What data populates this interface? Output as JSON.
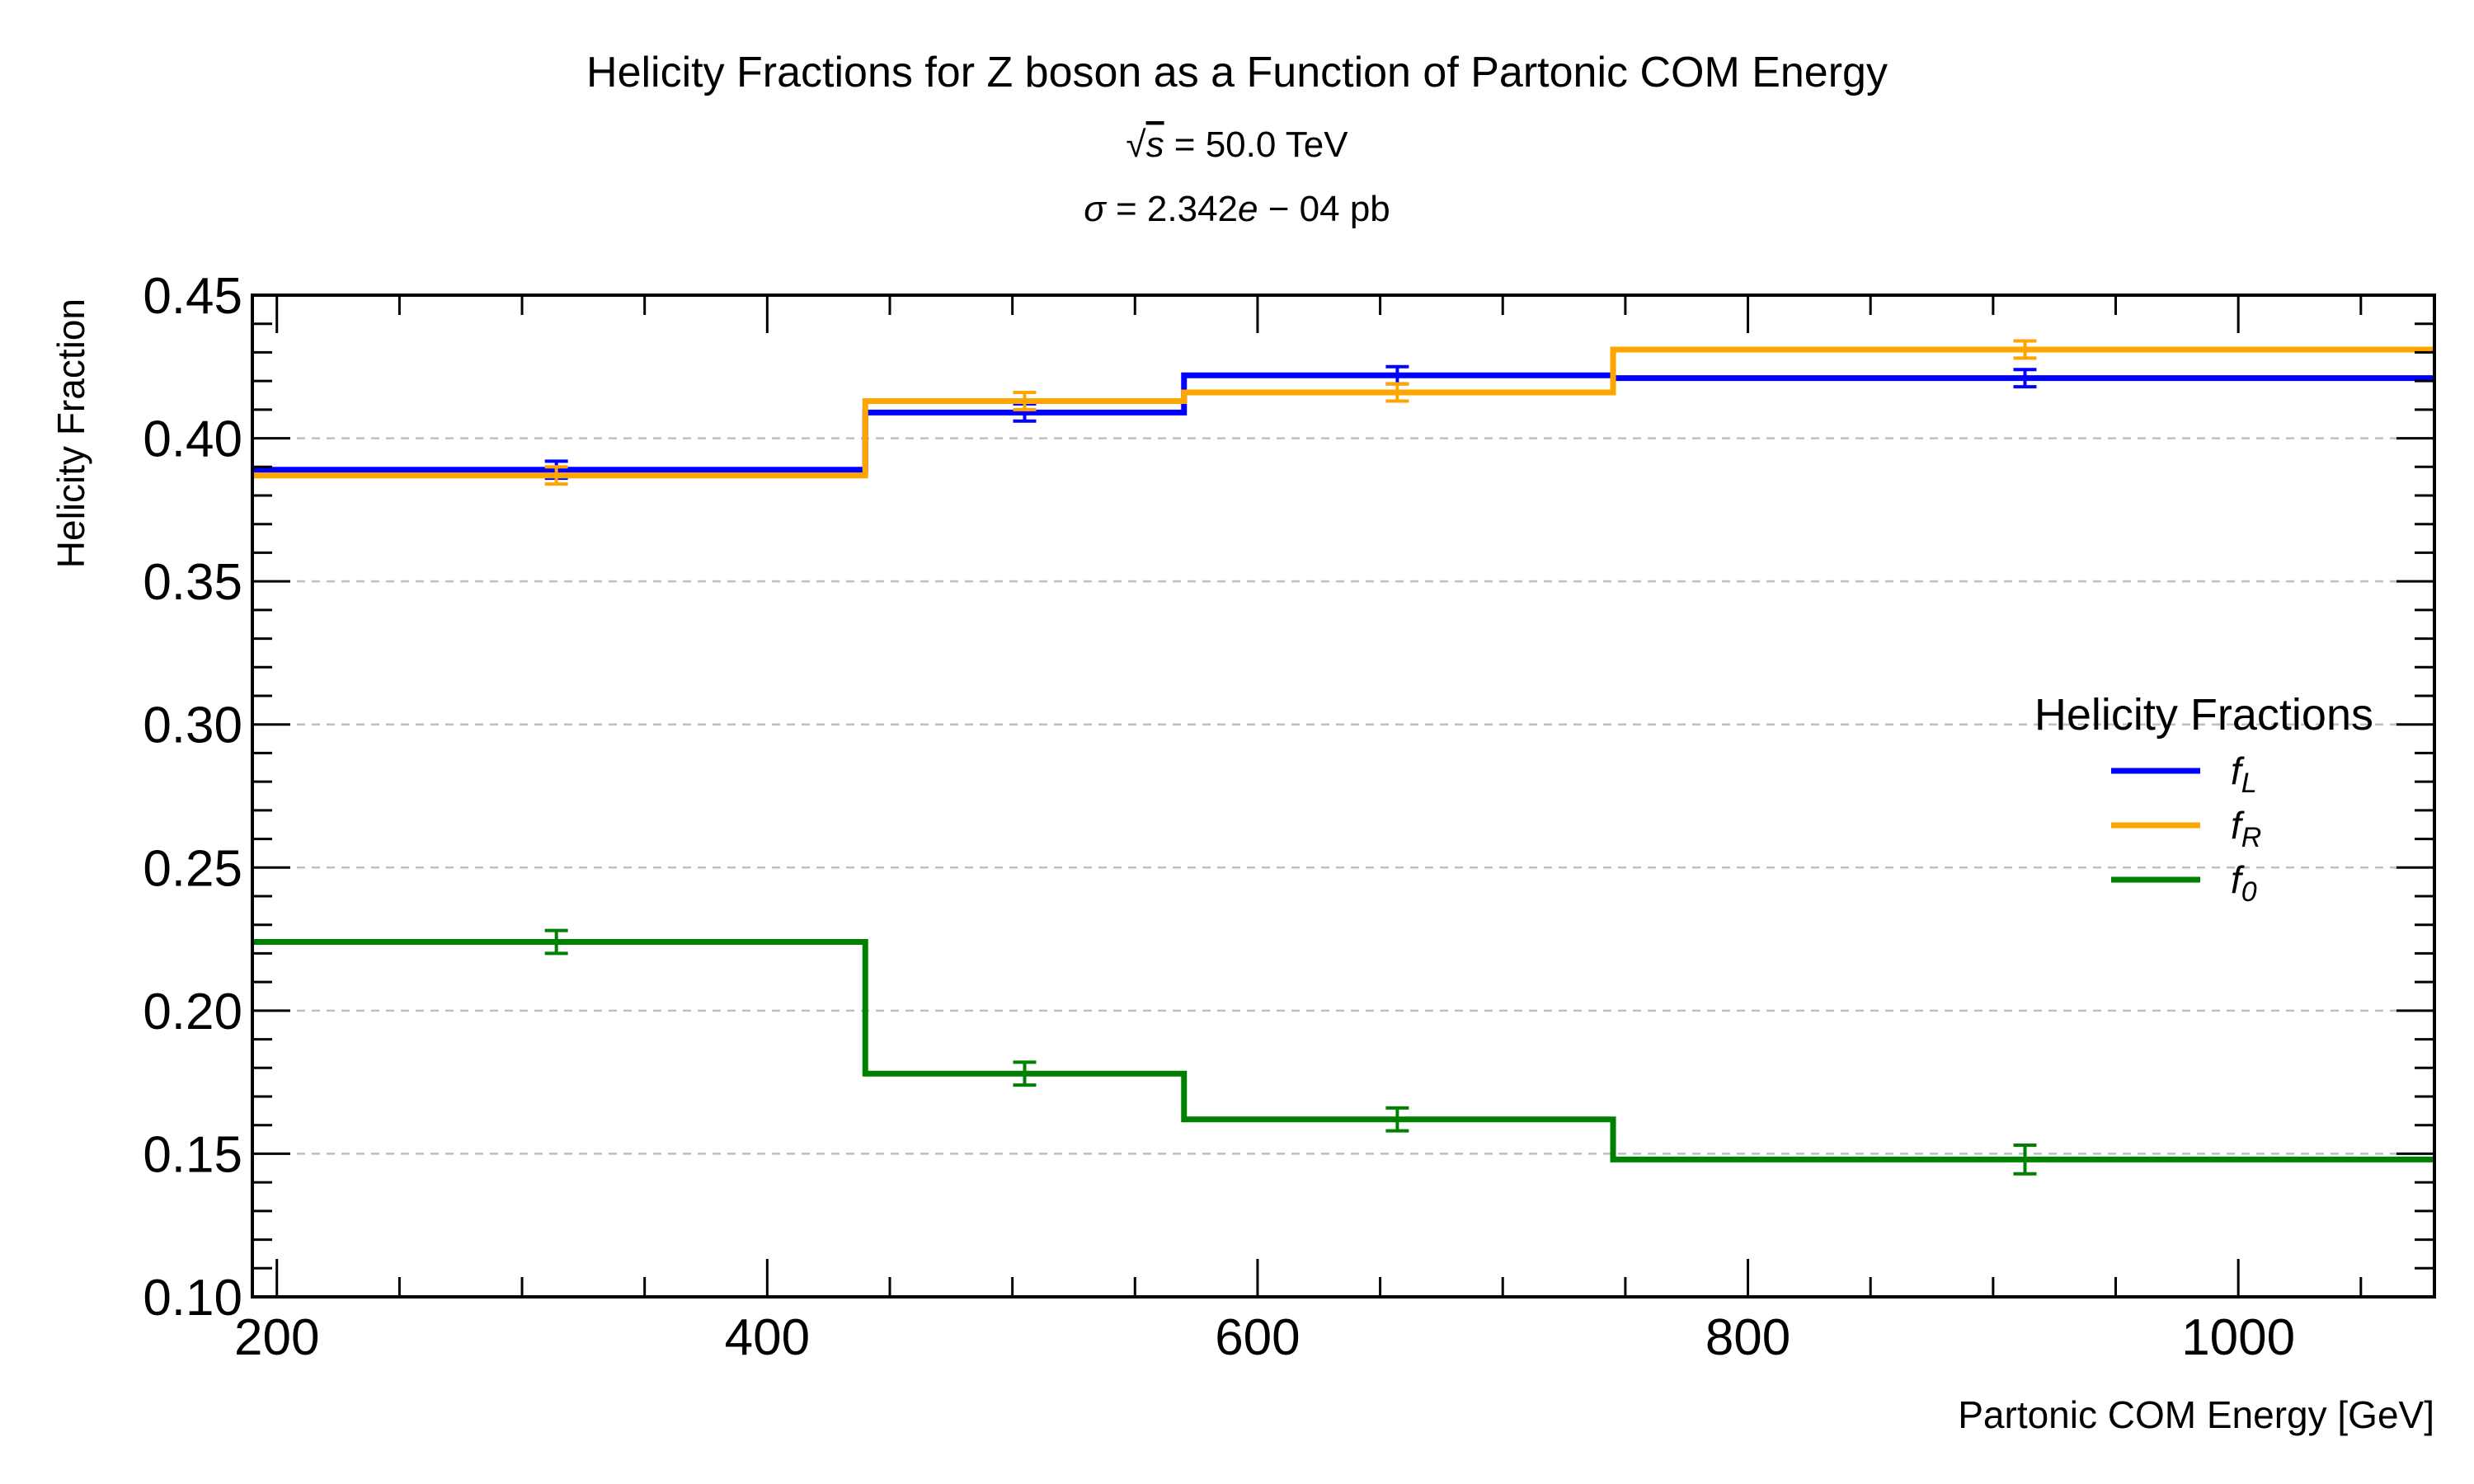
{
  "chart_data": {
    "type": "line",
    "style": "step",
    "title": "Helicity Fractions for Z boson as a Function of Partonic COM Energy",
    "subtitle_sqrt_symbol": "√",
    "subtitle_sqrt_var": "s",
    "subtitle_sqrt_rest": " = 50.0 TeV",
    "subtitle_sigma_symbol": "σ",
    "subtitle_sigma_rest_a": " = 2.342",
    "subtitle_sigma_e": "e",
    "subtitle_sigma_rest_b": " − 04 pb",
    "xlabel": "Partonic COM Energy [GeV]",
    "ylabel": "Helicity Fraction",
    "xlim": [
      190,
      1080
    ],
    "ylim": [
      0.1,
      0.45
    ],
    "x_ticks": [
      200,
      400,
      600,
      800,
      1000
    ],
    "y_ticks": [
      0.1,
      0.15,
      0.2,
      0.25,
      0.3,
      0.35,
      0.4,
      0.45
    ],
    "x_tick_labels": [
      "200",
      "400",
      "600",
      "800",
      "1000"
    ],
    "y_tick_labels": [
      "0.10",
      "0.15",
      "0.20",
      "0.25",
      "0.30",
      "0.35",
      "0.40",
      "0.45"
    ],
    "grid": "horizontal dashed",
    "bin_edges": [
      190,
      440,
      570,
      745,
      1080
    ],
    "bin_centers": [
      314,
      505,
      657,
      913
    ],
    "series": [
      {
        "name_base": "f",
        "name_sub": "L",
        "color": "#0000ff",
        "values": [
          0.389,
          0.409,
          0.422,
          0.421
        ],
        "errors": [
          0.003,
          0.003,
          0.003,
          0.003
        ]
      },
      {
        "name_base": "f",
        "name_sub": "R",
        "color": "#ffa500",
        "values": [
          0.387,
          0.413,
          0.416,
          0.431
        ],
        "errors": [
          0.003,
          0.003,
          0.003,
          0.003
        ]
      },
      {
        "name_base": "f",
        "name_sub": "0",
        "color": "#008000",
        "values": [
          0.224,
          0.178,
          0.162,
          0.148
        ],
        "errors": [
          0.004,
          0.004,
          0.004,
          0.005
        ]
      }
    ],
    "legend": {
      "title": "Helicity Fractions",
      "placement": "center-right"
    }
  }
}
